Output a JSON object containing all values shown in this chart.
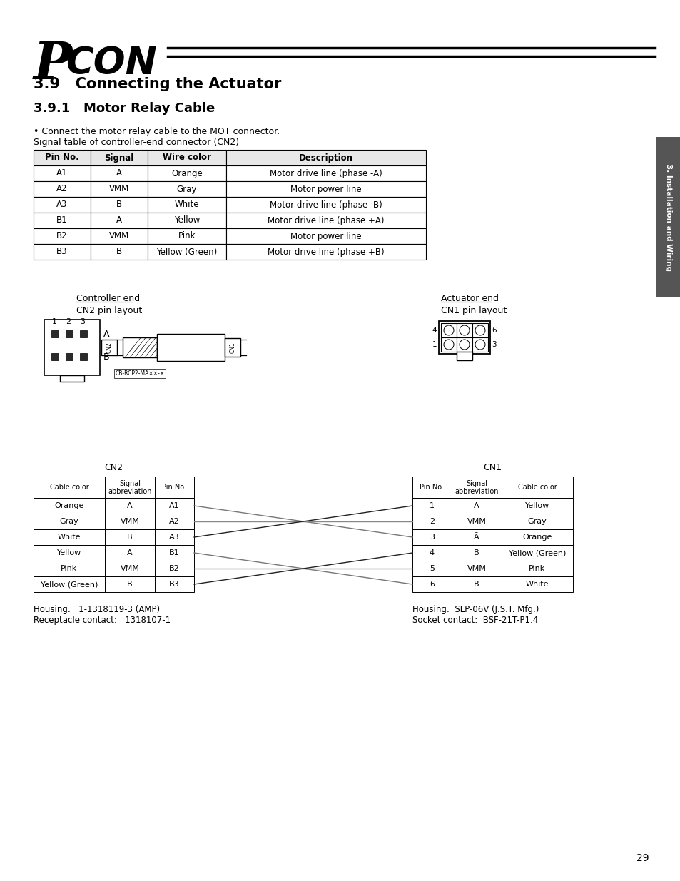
{
  "bg_color": "#ffffff",
  "page_number": "29",
  "section_title": "3.9   Connecting the Actuator",
  "subsection_title": "3.9.1   Motor Relay Cable",
  "bullet_text": "• Connect the motor relay cable to the MOT connector.",
  "signal_table_note": "Signal table of controller-end connector (CN2)",
  "table_headers": [
    "Pin No.",
    "Signal",
    "Wire color",
    "Description"
  ],
  "table_rows": [
    [
      "A1",
      "Ā",
      "Orange",
      "Motor drive line (phase -A)"
    ],
    [
      "A2",
      "VMM",
      "Gray",
      "Motor power line"
    ],
    [
      "A3",
      "B̅",
      "White",
      "Motor drive line (phase -B)"
    ],
    [
      "B1",
      "A",
      "Yellow",
      "Motor drive line (phase +A)"
    ],
    [
      "B2",
      "VMM",
      "Pink",
      "Motor power line"
    ],
    [
      "B3",
      "B",
      "Yellow (Green)",
      "Motor drive line (phase +B)"
    ]
  ],
  "cn2_label": "CN2",
  "cn1_label": "CN1",
  "controller_end_label": "Controller end",
  "cn2_pin_layout": "CN2 pin layout",
  "actuator_end_label": "Actuator end",
  "cn1_pin_layout": "CN1 pin layout",
  "cable_label": "CB-RCP2-MA××-×",
  "cn2_table_rows": [
    [
      "Orange",
      "Ā",
      "A1"
    ],
    [
      "Gray",
      "VMM",
      "A2"
    ],
    [
      "White",
      "B̅",
      "A3"
    ],
    [
      "Yellow",
      "A",
      "B1"
    ],
    [
      "Pink",
      "VMM",
      "B2"
    ],
    [
      "Yellow (Green)",
      "B",
      "B3"
    ]
  ],
  "cn1_table_rows": [
    [
      "1",
      "A",
      "Yellow"
    ],
    [
      "2",
      "VMM",
      "Gray"
    ],
    [
      "3",
      "Ā",
      "Orange"
    ],
    [
      "4",
      "B",
      "Yellow (Green)"
    ],
    [
      "5",
      "VMM",
      "Pink"
    ],
    [
      "6",
      "B̅",
      "White"
    ]
  ],
  "cn2_housing": "Housing:   1-1318119-3 (AMP)",
  "cn2_receptacle": "Receptacle contact:   1318107-1",
  "cn1_housing": "Housing:  SLP-06V (J.S.T. Mfg.)",
  "cn1_socket": "Socket contact:  BSF-21T-P1.4",
  "sidebar_text": "3. Installation and Wiring",
  "tab_color": "#555555"
}
